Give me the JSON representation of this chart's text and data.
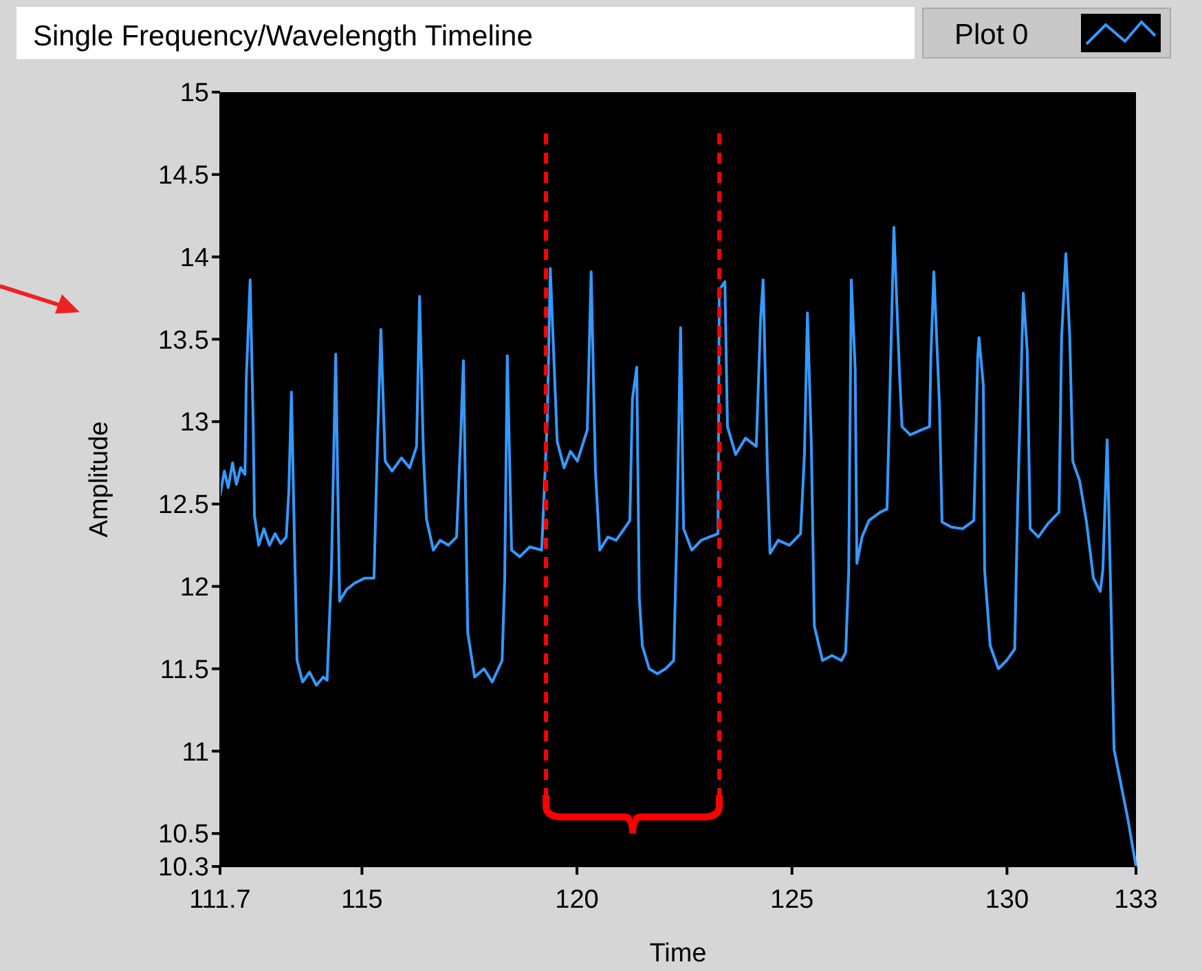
{
  "chart_data": {
    "type": "line",
    "title": "Single Frequency/Wavelength Timeline",
    "xlabel": "Time",
    "ylabel": "Amplitude",
    "xlim": [
      111.7,
      133
    ],
    "xticks": [
      111.7,
      115,
      120,
      125,
      130,
      133
    ],
    "ylim": [
      10.3,
      15
    ],
    "yticks": [
      10.3,
      10.5,
      11,
      11.5,
      12,
      12.5,
      13,
      13.5,
      14,
      14.5,
      15
    ],
    "grid": false,
    "legend": "top right",
    "ref_lines": [
      {
        "axis": "x",
        "value": 119.28,
        "color": "#ff0000",
        "line_style": "dashed"
      },
      {
        "axis": "x",
        "value": 123.31,
        "color": "#ff0000",
        "line_style": "dashed"
      }
    ],
    "series": [
      {
        "name": "Plot 0",
        "color": "#3399ff",
        "x": [
          111.7,
          111.8,
          111.89,
          111.99,
          112.08,
          112.18,
          112.28,
          112.31,
          112.4,
          112.47,
          112.5,
          112.6,
          112.72,
          112.85,
          112.98,
          113.11,
          113.24,
          113.3,
          113.36,
          113.43,
          113.49,
          113.62,
          113.78,
          113.94,
          114.1,
          114.19,
          114.29,
          114.39,
          114.48,
          114.64,
          114.83,
          115.06,
          115.28,
          115.35,
          115.44,
          115.54,
          115.7,
          115.92,
          116.11,
          116.27,
          116.34,
          116.43,
          116.5,
          116.66,
          116.82,
          117.01,
          117.2,
          117.3,
          117.36,
          117.46,
          117.62,
          117.84,
          118.03,
          118.26,
          118.32,
          118.38,
          118.48,
          118.67,
          118.9,
          119.18,
          119.31,
          119.38,
          119.54,
          119.7,
          119.85,
          120.01,
          120.24,
          120.33,
          120.43,
          120.53,
          120.72,
          120.91,
          121.1,
          121.23,
          121.29,
          121.39,
          121.45,
          121.52,
          121.68,
          121.87,
          122.06,
          122.25,
          122.32,
          122.41,
          122.48,
          122.67,
          122.89,
          123.08,
          123.28,
          123.31,
          123.44,
          123.5,
          123.69,
          123.92,
          124.17,
          124.27,
          124.33,
          124.43,
          124.49,
          124.68,
          124.94,
          125.2,
          125.29,
          125.36,
          125.45,
          125.52,
          125.71,
          125.93,
          126.15,
          126.25,
          126.32,
          126.38,
          126.47,
          126.51,
          126.63,
          126.79,
          127.05,
          127.21,
          127.27,
          127.37,
          127.5,
          127.56,
          127.75,
          128.01,
          128.2,
          128.23,
          128.3,
          128.43,
          128.49,
          128.71,
          128.97,
          129.23,
          129.32,
          129.35,
          129.45,
          129.48,
          129.61,
          129.8,
          129.99,
          130.18,
          130.25,
          130.38,
          130.47,
          130.54,
          130.73,
          130.95,
          131.21,
          131.27,
          131.37,
          131.46,
          131.53,
          131.69,
          131.85,
          132.01,
          132.17,
          132.23,
          132.33,
          132.42,
          132.49,
          132.65,
          132.81,
          133.0
        ],
        "values": [
          12.55,
          12.7,
          12.6,
          12.75,
          12.62,
          12.72,
          12.68,
          13.26,
          13.86,
          13.0,
          12.43,
          12.25,
          12.35,
          12.25,
          12.32,
          12.26,
          12.3,
          12.58,
          13.18,
          12.28,
          11.55,
          11.42,
          11.48,
          11.4,
          11.45,
          11.43,
          12.1,
          13.41,
          11.91,
          11.98,
          12.02,
          12.05,
          12.05,
          12.76,
          13.56,
          12.76,
          12.7,
          12.78,
          12.72,
          12.85,
          13.76,
          12.8,
          12.41,
          12.22,
          12.28,
          12.25,
          12.3,
          12.93,
          13.37,
          11.72,
          11.45,
          11.5,
          11.42,
          11.55,
          12.05,
          13.4,
          12.22,
          12.18,
          12.24,
          12.22,
          13.01,
          13.93,
          12.88,
          12.72,
          12.82,
          12.76,
          12.95,
          13.91,
          12.7,
          12.22,
          12.3,
          12.28,
          12.35,
          12.4,
          13.14,
          13.33,
          11.93,
          11.64,
          11.5,
          11.47,
          11.5,
          11.55,
          12.3,
          13.57,
          12.35,
          12.22,
          12.28,
          12.3,
          12.32,
          13.8,
          13.85,
          12.97,
          12.8,
          12.9,
          12.85,
          13.62,
          13.86,
          12.7,
          12.2,
          12.28,
          12.25,
          12.32,
          12.8,
          13.66,
          12.87,
          11.76,
          11.55,
          11.58,
          11.55,
          11.6,
          12.1,
          13.86,
          13.32,
          12.14,
          12.3,
          12.4,
          12.45,
          12.47,
          13.1,
          14.18,
          13.3,
          12.97,
          12.92,
          12.95,
          12.97,
          13.39,
          13.91,
          13.1,
          12.39,
          12.36,
          12.35,
          12.4,
          13.39,
          13.51,
          13.22,
          12.1,
          11.64,
          11.5,
          11.55,
          11.62,
          12.51,
          13.78,
          13.43,
          12.35,
          12.3,
          12.38,
          12.45,
          13.51,
          14.02,
          13.51,
          12.76,
          12.64,
          12.39,
          12.05,
          11.97,
          12.1,
          12.89,
          11.88,
          11.01,
          10.8,
          10.59,
          10.3
        ]
      }
    ]
  }
}
